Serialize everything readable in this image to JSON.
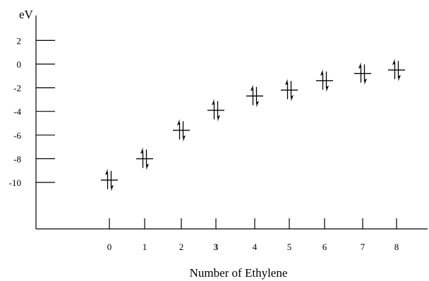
{
  "chart_data": {
    "type": "scatter",
    "title": "",
    "xlabel": "Number of Ethylene",
    "ylabel": "eV",
    "x": [
      0,
      1,
      2,
      3,
      4,
      5,
      6,
      7,
      8
    ],
    "x_tick_labels": [
      "0",
      "1",
      "2",
      "3",
      "4",
      "5",
      "6",
      "7",
      "8"
    ],
    "x_tick_bold_index": 3,
    "y_ticks": [
      2,
      0,
      -2,
      -4,
      -6,
      -8,
      -10
    ],
    "y_tick_labels": [
      "2",
      "0",
      "-2",
      "-4",
      "-6",
      "-8",
      "-10"
    ],
    "ylim": [
      -14,
      4
    ],
    "series": [
      {
        "values": [
          -9.8,
          -8.0,
          -5.6,
          -3.9,
          -2.7,
          -2.2,
          -1.4,
          -0.8,
          -0.5
        ],
        "marker": "paired-electron level (up/down arrows)"
      }
    ],
    "grid": false,
    "legend": "none"
  }
}
